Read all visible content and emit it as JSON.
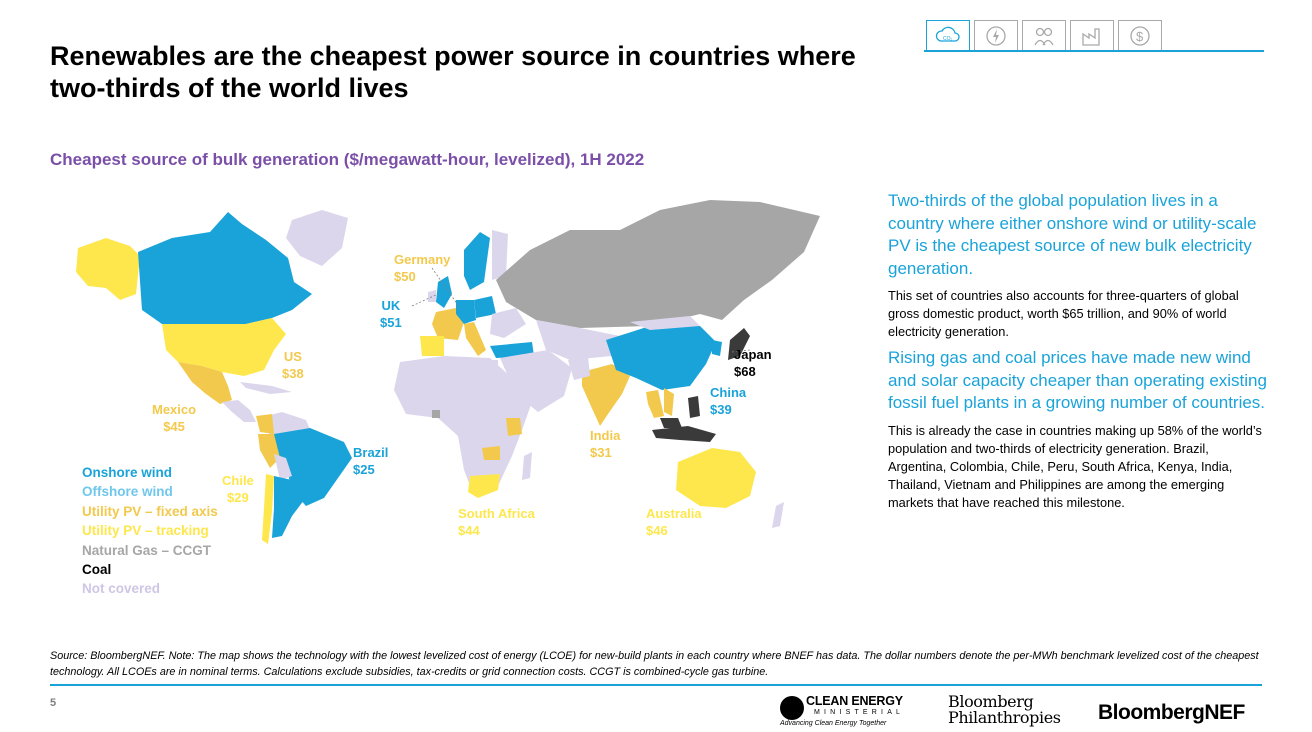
{
  "title": "Renewables are the cheapest power source in countries where two-thirds of the world lives",
  "nav_icons": [
    "co2-icon",
    "power-icon",
    "people-icon",
    "factory-icon",
    "dollar-icon"
  ],
  "co2_label": "CO₂",
  "subtitle": "Cheapest source of bulk generation ($/megawatt-hour, levelized), 1H 2022",
  "colors": {
    "onshore_wind": "#1aa3d9",
    "offshore_wind": "#6fc7ec",
    "pv_fixed": "#f2c94c",
    "pv_tracking": "#fde74c",
    "gas": "#a6a6a6",
    "coal": "#3a3a3a",
    "not_covered": "#dcd6ec",
    "accent": "#1aa3d9",
    "subtitle": "#7b4fa8"
  },
  "map_labels": {
    "germany": {
      "name": "Germany",
      "value": "$50"
    },
    "uk": {
      "name": "UK",
      "value": "$51"
    },
    "us": {
      "name": "US",
      "value": "$38"
    },
    "mexico": {
      "name": "Mexico",
      "value": "$45"
    },
    "brazil": {
      "name": "Brazil",
      "value": "$25"
    },
    "chile": {
      "name": "Chile",
      "value": "$29"
    },
    "south_africa": {
      "name": "South Africa",
      "value": "$44"
    },
    "india": {
      "name": "India",
      "value": "$31"
    },
    "australia": {
      "name": "Australia",
      "value": "$46"
    },
    "china": {
      "name": "China",
      "value": "$39"
    },
    "japan": {
      "name": "Japan",
      "value": "$68"
    }
  },
  "legend": [
    {
      "label": "Onshore wind",
      "color": "#1aa3d9"
    },
    {
      "label": "Offshore wind",
      "color": "#6fc7ec"
    },
    {
      "label": "Utility PV – fixed axis",
      "color": "#f2c94c"
    },
    {
      "label": "Utility PV – tracking",
      "color": "#fde74c"
    },
    {
      "label": "Natural Gas – CCGT",
      "color": "#a6a6a6"
    },
    {
      "label": "Coal",
      "color": "#000000"
    },
    {
      "label": "Not covered",
      "color": "#cfc6e6"
    }
  ],
  "side": {
    "highlight1": "Two-thirds of the global population lives in a country where either onshore wind or utility-scale PV is the cheapest source of new bulk electricity generation.",
    "body1": "This set of countries also accounts for three-quarters of global gross domestic product, worth $65 trillion, and 90% of world electricity generation.",
    "highlight2": "Rising gas and coal prices have made new wind and solar capacity cheaper than operating existing fossil fuel plants in a growing number of countries.",
    "body2": "This is already the case in countries making up 58% of the world’s population and two-thirds of electricity generation. Brazil, Argentina, Colombia, Chile, Peru, South Africa, Kenya, India, Thailand, Vietnam and Philippines are among the emerging markets that have reached this milestone."
  },
  "source": "Source: BloombergNEF. Note: The map shows the technology with the lowest levelized cost of energy (LCOE) for new-build plants in each country where BNEF has data. The dollar numbers denote the per-MWh benchmark levelized cost of the cheapest technology. All LCOEs are in nominal terms. Calculations exclude subsidies, tax-credits or grid connection costs. CCGT is combined-cycle gas turbine.",
  "page_number": "5",
  "logos": {
    "cem_name": "CLEAN ENERGY",
    "cem_sub": "MINISTERIAL",
    "cem_tagline": "Advancing Clean Energy Together",
    "philanthropies_line1": "Bloomberg",
    "philanthropies_line2": "Philanthropies",
    "bnef": "BloombergNEF"
  }
}
